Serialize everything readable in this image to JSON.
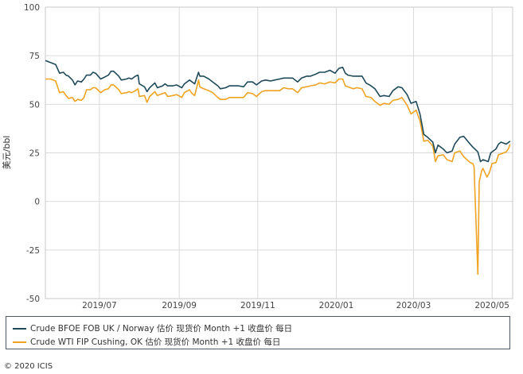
{
  "colors": {
    "background": "#ffffff",
    "grid": "#d9d9d9",
    "frame": "#c8c8c8",
    "brent": "#1f4a5a",
    "wti": "#f0a321"
  },
  "footer": {
    "copyright": "© 2020 ICIS"
  },
  "chart_data": {
    "type": "line",
    "title": "",
    "xlabel": "",
    "ylabel": "美元/bbl",
    "ylim": [
      -50,
      100
    ],
    "yticks": [
      100,
      75,
      50,
      25,
      0,
      -25,
      -50
    ],
    "xlim": [
      "2019-05-20",
      "2020-05-17"
    ],
    "xticks": [
      {
        "date": "2019-07-01",
        "label": "2019/07"
      },
      {
        "date": "2019-09-01",
        "label": "2019/09"
      },
      {
        "date": "2019-11-01",
        "label": "2019/11"
      },
      {
        "date": "2020-01-01",
        "label": "2020/01"
      },
      {
        "date": "2020-03-01",
        "label": "2020/03"
      },
      {
        "date": "2020-05-01",
        "label": "2020/05"
      }
    ],
    "grid": true,
    "legend_position": "bottom",
    "series": [
      {
        "name": "Crude BFOE FOB UK / Norway 估价 现货价 Month +1 收盘价 每日",
        "color": "#1f4a5a",
        "points": [
          [
            "2019-05-20",
            72.5
          ],
          [
            "2019-05-24",
            71.5
          ],
          [
            "2019-05-28",
            70.5
          ],
          [
            "2019-05-31",
            66.0
          ],
          [
            "2019-06-03",
            66.5
          ],
          [
            "2019-06-05",
            65.0
          ],
          [
            "2019-06-07",
            64.5
          ],
          [
            "2019-06-10",
            62.5
          ],
          [
            "2019-06-12",
            60.0
          ],
          [
            "2019-06-14",
            62.0
          ],
          [
            "2019-06-17",
            61.5
          ],
          [
            "2019-06-19",
            63.0
          ],
          [
            "2019-06-21",
            65.0
          ],
          [
            "2019-06-24",
            65.0
          ],
          [
            "2019-06-26",
            66.5
          ],
          [
            "2019-06-28",
            66.0
          ],
          [
            "2019-07-02",
            63.0
          ],
          [
            "2019-07-05",
            64.0
          ],
          [
            "2019-07-08",
            65.0
          ],
          [
            "2019-07-10",
            67.0
          ],
          [
            "2019-07-12",
            67.0
          ],
          [
            "2019-07-16",
            64.5
          ],
          [
            "2019-07-18",
            62.5
          ],
          [
            "2019-07-22",
            63.0
          ],
          [
            "2019-07-24",
            63.5
          ],
          [
            "2019-07-26",
            63.0
          ],
          [
            "2019-07-29",
            64.5
          ],
          [
            "2019-07-31",
            65.0
          ],
          [
            "2019-08-01",
            60.5
          ],
          [
            "2019-08-05",
            59.0
          ],
          [
            "2019-08-07",
            56.5
          ],
          [
            "2019-08-09",
            58.5
          ],
          [
            "2019-08-13",
            61.0
          ],
          [
            "2019-08-15",
            58.5
          ],
          [
            "2019-08-19",
            59.5
          ],
          [
            "2019-08-21",
            60.5
          ],
          [
            "2019-08-23",
            59.5
          ],
          [
            "2019-08-27",
            59.5
          ],
          [
            "2019-08-30",
            60.0
          ],
          [
            "2019-09-03",
            58.5
          ],
          [
            "2019-09-05",
            60.5
          ],
          [
            "2019-09-09",
            62.5
          ],
          [
            "2019-09-11",
            61.5
          ],
          [
            "2019-09-13",
            60.5
          ],
          [
            "2019-09-16",
            66.5
          ],
          [
            "2019-09-17",
            64.5
          ],
          [
            "2019-09-20",
            64.5
          ],
          [
            "2019-09-24",
            63.0
          ],
          [
            "2019-09-27",
            61.5
          ],
          [
            "2019-10-01",
            59.5
          ],
          [
            "2019-10-03",
            58.0
          ],
          [
            "2019-10-07",
            58.5
          ],
          [
            "2019-10-10",
            59.5
          ],
          [
            "2019-10-14",
            59.5
          ],
          [
            "2019-10-17",
            59.5
          ],
          [
            "2019-10-21",
            59.0
          ],
          [
            "2019-10-24",
            61.5
          ],
          [
            "2019-10-28",
            61.5
          ],
          [
            "2019-10-31",
            60.0
          ],
          [
            "2019-11-04",
            62.0
          ],
          [
            "2019-11-07",
            62.5
          ],
          [
            "2019-11-11",
            62.0
          ],
          [
            "2019-11-14",
            62.5
          ],
          [
            "2019-11-18",
            63.0
          ],
          [
            "2019-11-21",
            63.5
          ],
          [
            "2019-11-25",
            63.5
          ],
          [
            "2019-11-28",
            63.5
          ],
          [
            "2019-12-02",
            61.5
          ],
          [
            "2019-12-05",
            63.5
          ],
          [
            "2019-12-09",
            64.5
          ],
          [
            "2019-12-12",
            64.5
          ],
          [
            "2019-12-16",
            65.5
          ],
          [
            "2019-12-19",
            66.5
          ],
          [
            "2019-12-23",
            66.5
          ],
          [
            "2019-12-27",
            67.5
          ],
          [
            "2019-12-31",
            66.0
          ],
          [
            "2020-01-03",
            68.5
          ],
          [
            "2020-01-06",
            69.0
          ],
          [
            "2020-01-08",
            66.0
          ],
          [
            "2020-01-10",
            65.0
          ],
          [
            "2020-01-14",
            64.5
          ],
          [
            "2020-01-17",
            64.5
          ],
          [
            "2020-01-21",
            64.5
          ],
          [
            "2020-01-24",
            61.0
          ],
          [
            "2020-01-28",
            59.5
          ],
          [
            "2020-01-31",
            58.0
          ],
          [
            "2020-02-04",
            54.0
          ],
          [
            "2020-02-07",
            54.5
          ],
          [
            "2020-02-11",
            54.0
          ],
          [
            "2020-02-14",
            57.0
          ],
          [
            "2020-02-18",
            59.0
          ],
          [
            "2020-02-21",
            58.5
          ],
          [
            "2020-02-25",
            55.0
          ],
          [
            "2020-02-28",
            50.5
          ],
          [
            "2020-03-03",
            51.5
          ],
          [
            "2020-03-06",
            45.0
          ],
          [
            "2020-03-09",
            34.5
          ],
          [
            "2020-03-12",
            33.0
          ],
          [
            "2020-03-16",
            30.5
          ],
          [
            "2020-03-18",
            25.0
          ],
          [
            "2020-03-20",
            29.0
          ],
          [
            "2020-03-24",
            27.0
          ],
          [
            "2020-03-27",
            25.0
          ],
          [
            "2020-03-31",
            26.0
          ],
          [
            "2020-04-02",
            29.5
          ],
          [
            "2020-04-06",
            33.0
          ],
          [
            "2020-04-09",
            33.5
          ],
          [
            "2020-04-14",
            29.5
          ],
          [
            "2020-04-16",
            28.0
          ],
          [
            "2020-04-20",
            25.5
          ],
          [
            "2020-04-22",
            20.5
          ],
          [
            "2020-04-24",
            21.5
          ],
          [
            "2020-04-28",
            20.5
          ],
          [
            "2020-04-30",
            25.0
          ],
          [
            "2020-05-04",
            27.0
          ],
          [
            "2020-05-06",
            29.5
          ],
          [
            "2020-05-08",
            30.5
          ],
          [
            "2020-05-12",
            29.5
          ],
          [
            "2020-05-15",
            31.0
          ]
        ]
      },
      {
        "name": "Crude WTI FIP Cushing, OK 估价 现货价 Month +1 收盘价 每日",
        "color": "#f0a321",
        "points": [
          [
            "2019-05-20",
            63.0
          ],
          [
            "2019-05-24",
            63.0
          ],
          [
            "2019-05-28",
            62.0
          ],
          [
            "2019-05-31",
            56.0
          ],
          [
            "2019-06-03",
            56.5
          ],
          [
            "2019-06-05",
            54.5
          ],
          [
            "2019-06-07",
            53.0
          ],
          [
            "2019-06-10",
            53.5
          ],
          [
            "2019-06-12",
            51.5
          ],
          [
            "2019-06-14",
            52.5
          ],
          [
            "2019-06-17",
            52.0
          ],
          [
            "2019-06-19",
            53.5
          ],
          [
            "2019-06-21",
            57.5
          ],
          [
            "2019-06-24",
            57.5
          ],
          [
            "2019-06-26",
            58.5
          ],
          [
            "2019-06-28",
            58.5
          ],
          [
            "2019-07-02",
            56.0
          ],
          [
            "2019-07-05",
            57.5
          ],
          [
            "2019-07-08",
            58.0
          ],
          [
            "2019-07-10",
            60.0
          ],
          [
            "2019-07-12",
            60.0
          ],
          [
            "2019-07-16",
            57.5
          ],
          [
            "2019-07-18",
            55.5
          ],
          [
            "2019-07-22",
            56.0
          ],
          [
            "2019-07-24",
            56.5
          ],
          [
            "2019-07-26",
            56.0
          ],
          [
            "2019-07-29",
            57.0
          ],
          [
            "2019-07-31",
            58.0
          ],
          [
            "2019-08-01",
            54.0
          ],
          [
            "2019-08-05",
            54.5
          ],
          [
            "2019-08-07",
            51.0
          ],
          [
            "2019-08-09",
            54.0
          ],
          [
            "2019-08-13",
            56.5
          ],
          [
            "2019-08-15",
            54.5
          ],
          [
            "2019-08-19",
            55.5
          ],
          [
            "2019-08-21",
            56.0
          ],
          [
            "2019-08-23",
            54.0
          ],
          [
            "2019-08-27",
            54.5
          ],
          [
            "2019-08-30",
            55.0
          ],
          [
            "2019-09-03",
            53.5
          ],
          [
            "2019-09-05",
            56.0
          ],
          [
            "2019-09-09",
            57.5
          ],
          [
            "2019-09-11",
            55.5
          ],
          [
            "2019-09-13",
            54.5
          ],
          [
            "2019-09-16",
            62.5
          ],
          [
            "2019-09-17",
            59.0
          ],
          [
            "2019-09-20",
            58.0
          ],
          [
            "2019-09-24",
            57.0
          ],
          [
            "2019-09-27",
            56.0
          ],
          [
            "2019-10-01",
            53.5
          ],
          [
            "2019-10-03",
            52.5
          ],
          [
            "2019-10-07",
            52.5
          ],
          [
            "2019-10-10",
            53.5
          ],
          [
            "2019-10-14",
            53.5
          ],
          [
            "2019-10-17",
            53.5
          ],
          [
            "2019-10-21",
            53.5
          ],
          [
            "2019-10-24",
            56.0
          ],
          [
            "2019-10-28",
            55.5
          ],
          [
            "2019-10-31",
            54.0
          ],
          [
            "2019-11-04",
            56.5
          ],
          [
            "2019-11-07",
            57.0
          ],
          [
            "2019-11-11",
            57.0
          ],
          [
            "2019-11-14",
            57.0
          ],
          [
            "2019-11-18",
            57.0
          ],
          [
            "2019-11-21",
            58.5
          ],
          [
            "2019-11-25",
            58.0
          ],
          [
            "2019-11-28",
            58.0
          ],
          [
            "2019-12-02",
            56.0
          ],
          [
            "2019-12-05",
            58.5
          ],
          [
            "2019-12-09",
            59.0
          ],
          [
            "2019-12-12",
            59.5
          ],
          [
            "2019-12-16",
            60.0
          ],
          [
            "2019-12-19",
            61.0
          ],
          [
            "2019-12-23",
            60.5
          ],
          [
            "2019-12-27",
            61.5
          ],
          [
            "2019-12-31",
            61.0
          ],
          [
            "2020-01-03",
            63.0
          ],
          [
            "2020-01-06",
            63.0
          ],
          [
            "2020-01-08",
            59.5
          ],
          [
            "2020-01-10",
            59.0
          ],
          [
            "2020-01-14",
            58.0
          ],
          [
            "2020-01-17",
            58.5
          ],
          [
            "2020-01-21",
            58.0
          ],
          [
            "2020-01-24",
            54.0
          ],
          [
            "2020-01-28",
            53.5
          ],
          [
            "2020-01-31",
            51.5
          ],
          [
            "2020-02-04",
            49.5
          ],
          [
            "2020-02-07",
            50.5
          ],
          [
            "2020-02-11",
            50.0
          ],
          [
            "2020-02-14",
            52.0
          ],
          [
            "2020-02-18",
            52.5
          ],
          [
            "2020-02-21",
            53.5
          ],
          [
            "2020-02-25",
            49.5
          ],
          [
            "2020-02-28",
            45.0
          ],
          [
            "2020-03-03",
            47.0
          ],
          [
            "2020-03-06",
            41.5
          ],
          [
            "2020-03-09",
            31.0
          ],
          [
            "2020-03-12",
            31.5
          ],
          [
            "2020-03-16",
            28.5
          ],
          [
            "2020-03-18",
            20.5
          ],
          [
            "2020-03-20",
            23.5
          ],
          [
            "2020-03-24",
            24.0
          ],
          [
            "2020-03-27",
            21.5
          ],
          [
            "2020-03-31",
            20.5
          ],
          [
            "2020-04-02",
            25.0
          ],
          [
            "2020-04-06",
            26.0
          ],
          [
            "2020-04-09",
            23.0
          ],
          [
            "2020-04-14",
            20.0
          ],
          [
            "2020-04-16",
            19.5
          ],
          [
            "2020-04-17",
            18.0
          ],
          [
            "2020-04-20",
            -37.5
          ],
          [
            "2020-04-21",
            10.0
          ],
          [
            "2020-04-23",
            16.0
          ],
          [
            "2020-04-24",
            17.0
          ],
          [
            "2020-04-27",
            12.5
          ],
          [
            "2020-04-29",
            15.0
          ],
          [
            "2020-05-01",
            19.5
          ],
          [
            "2020-05-04",
            20.0
          ],
          [
            "2020-05-06",
            24.0
          ],
          [
            "2020-05-08",
            24.5
          ],
          [
            "2020-05-12",
            25.5
          ],
          [
            "2020-05-14",
            27.5
          ],
          [
            "2020-05-15",
            29.5
          ]
        ]
      }
    ]
  }
}
